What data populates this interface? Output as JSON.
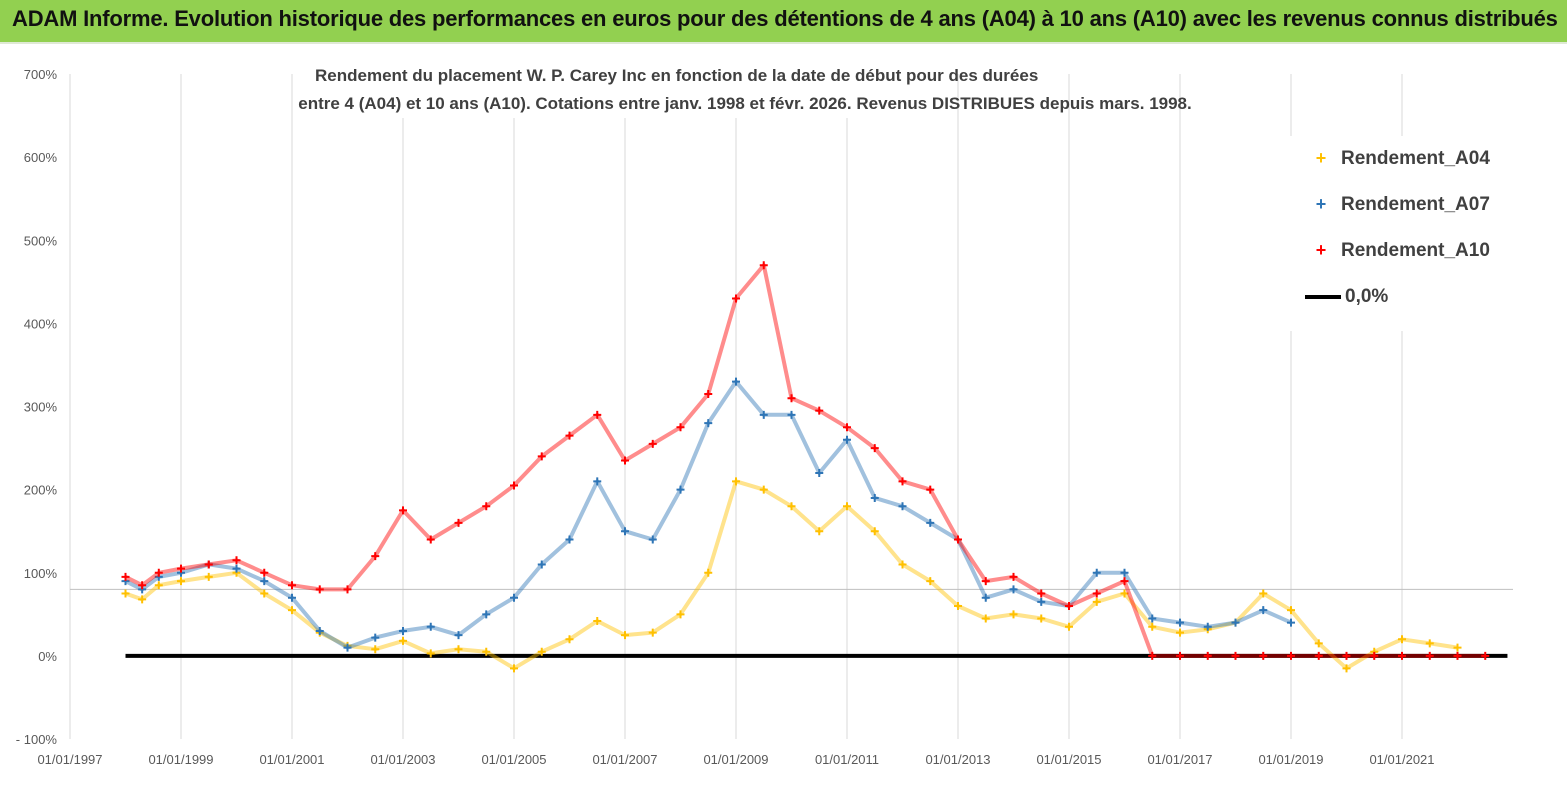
{
  "banner": {
    "title": "ADAM Informe. Evolution historique des performances en euros pour des détentions de 4 ans (A04) à 10 ans (A10) avec les revenus connus distribués"
  },
  "colors": {
    "banner": "#92d050",
    "A04": "#ffc000",
    "A07": "#2e75b6",
    "A10": "#ff0000",
    "zero": "#000000"
  },
  "chart_data": {
    "type": "scatter",
    "title_line1": "Rendement du placement W. P. Carey Inc en fonction de la date de début pour des durées",
    "title_line2": "entre 4 (A04) et 10 ans (A10). Cotations entre janv. 1998 et févr. 2026. Revenus DISTRIBUES depuis mars. 1998.",
    "xlabel": "",
    "ylabel": "",
    "x_range": [
      1997.0,
      2023.0
    ],
    "ylim": [
      -100,
      700
    ],
    "y_ticks": [
      -100,
      0,
      100,
      200,
      300,
      400,
      500,
      600,
      700
    ],
    "y_tick_labels": [
      "- 100%",
      "0%",
      "100%",
      "200%",
      "300%",
      "400%",
      "500%",
      "600%",
      "700%"
    ],
    "x_ticks": [
      1997,
      1999,
      2001,
      2003,
      2005,
      2007,
      2009,
      2011,
      2013,
      2015,
      2017,
      2019,
      2021
    ],
    "x_tick_labels": [
      "01/01/1997",
      "01/01/1999",
      "01/01/2001",
      "01/01/2003",
      "01/01/2005",
      "01/01/2007",
      "01/01/2009",
      "01/01/2011",
      "01/01/2013",
      "01/01/2015",
      "01/01/2017",
      "01/01/2019",
      "01/01/2021"
    ],
    "reference_line_value": 80,
    "legend_position": "top-right",
    "series": [
      {
        "name": "Rendement_A04",
        "marker": "+",
        "x": [
          1998.0,
          1998.3,
          1998.6,
          1999.0,
          1999.5,
          2000.0,
          2000.5,
          2001.0,
          2001.5,
          2002.0,
          2002.5,
          2003.0,
          2003.5,
          2004.0,
          2004.5,
          2005.0,
          2005.5,
          2006.0,
          2006.5,
          2007.0,
          2007.5,
          2008.0,
          2008.5,
          2009.0,
          2009.5,
          2010.0,
          2010.5,
          2011.0,
          2011.5,
          2012.0,
          2012.5,
          2013.0,
          2013.5,
          2014.0,
          2014.5,
          2015.0,
          2015.5,
          2016.0,
          2016.5,
          2017.0,
          2017.5,
          2018.0,
          2018.5,
          2019.0,
          2019.5,
          2020.0,
          2020.5,
          2021.0,
          2021.5,
          2022.0
        ],
        "y": [
          75,
          68,
          85,
          90,
          95,
          100,
          75,
          55,
          28,
          12,
          8,
          18,
          3,
          8,
          5,
          -15,
          5,
          20,
          42,
          25,
          28,
          50,
          100,
          210,
          200,
          180,
          150,
          180,
          150,
          110,
          90,
          60,
          45,
          50,
          45,
          35,
          65,
          75,
          35,
          28,
          32,
          40,
          75,
          55,
          15,
          -15,
          5,
          20,
          15,
          10
        ]
      },
      {
        "name": "Rendement_A07",
        "marker": "+",
        "x": [
          1998.0,
          1998.3,
          1998.6,
          1999.0,
          1999.5,
          2000.0,
          2000.5,
          2001.0,
          2001.5,
          2002.0,
          2002.5,
          2003.0,
          2003.5,
          2004.0,
          2004.5,
          2005.0,
          2005.5,
          2006.0,
          2006.5,
          2007.0,
          2007.5,
          2008.0,
          2008.5,
          2009.0,
          2009.5,
          2010.0,
          2010.5,
          2011.0,
          2011.5,
          2012.0,
          2012.5,
          2013.0,
          2013.5,
          2014.0,
          2014.5,
          2015.0,
          2015.5,
          2016.0,
          2016.5,
          2017.0,
          2017.5,
          2018.0,
          2018.5,
          2019.0
        ],
        "y": [
          90,
          80,
          95,
          100,
          110,
          105,
          90,
          70,
          30,
          10,
          22,
          30,
          35,
          25,
          50,
          70,
          110,
          140,
          210,
          150,
          140,
          200,
          280,
          330,
          290,
          290,
          220,
          260,
          190,
          180,
          160,
          140,
          70,
          80,
          65,
          60,
          100,
          100,
          45,
          40,
          35,
          40,
          55,
          40
        ]
      },
      {
        "name": "Rendement_A10",
        "marker": "+",
        "x": [
          1998.0,
          1998.3,
          1998.6,
          1999.0,
          1999.5,
          2000.0,
          2000.5,
          2001.0,
          2001.5,
          2002.0,
          2002.5,
          2003.0,
          2003.5,
          2004.0,
          2004.5,
          2005.0,
          2005.5,
          2006.0,
          2006.5,
          2007.0,
          2007.5,
          2008.0,
          2008.5,
          2009.0,
          2009.5,
          2010.0,
          2010.5,
          2011.0,
          2011.5,
          2012.0,
          2012.5,
          2013.0,
          2013.5,
          2014.0,
          2014.5,
          2015.0,
          2015.5,
          2016.0,
          2016.5,
          2017.0,
          2017.5,
          2018.0,
          2018.5,
          2019.0,
          2019.5,
          2020.0,
          2020.5,
          2021.0,
          2021.5,
          2022.0,
          2022.5
        ],
        "y": [
          95,
          85,
          100,
          105,
          110,
          115,
          100,
          85,
          80,
          80,
          120,
          175,
          140,
          160,
          180,
          205,
          240,
          265,
          290,
          235,
          255,
          275,
          315,
          430,
          470,
          310,
          295,
          275,
          250,
          210,
          200,
          140,
          90,
          95,
          75,
          60,
          75,
          90,
          0,
          0,
          0,
          0,
          0,
          0,
          0,
          0,
          0,
          0,
          0,
          0,
          0
        ]
      },
      {
        "name": "0,0%",
        "marker": "line",
        "x": [
          1998.0,
          2022.9
        ],
        "y": [
          0,
          0
        ]
      }
    ]
  }
}
